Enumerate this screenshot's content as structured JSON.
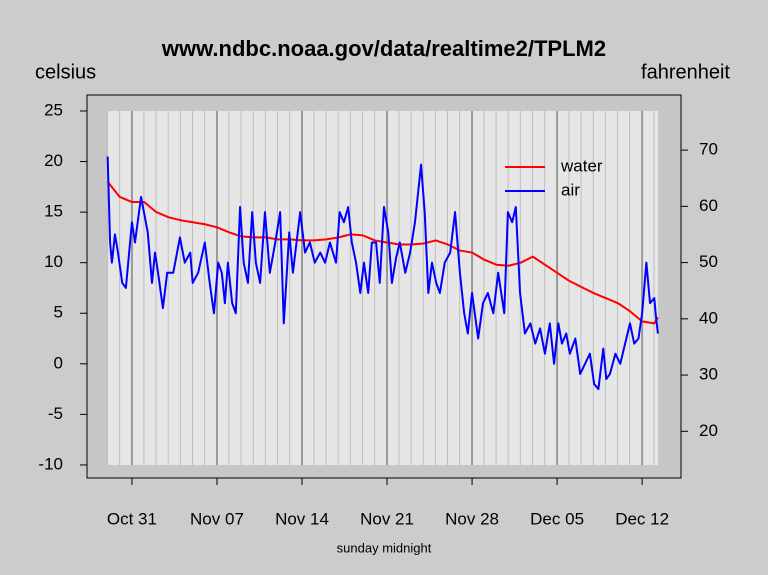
{
  "chart_data": {
    "type": "line",
    "title": "www.ndbc.noaa.gov/data/realtime2/TPLM2",
    "y_label": "celsius",
    "y2_label": "fahrenheit",
    "x_label": "sunday midnight",
    "xlim": [
      300.3,
      349.2
    ],
    "xticks": [
      {
        "value": 304,
        "label": "Oct 31"
      },
      {
        "value": 311,
        "label": "Nov 07"
      },
      {
        "value": 318,
        "label": "Nov 14"
      },
      {
        "value": 325,
        "label": "Nov 21"
      },
      {
        "value": 332,
        "label": "Nov 28"
      },
      {
        "value": 339,
        "label": "Dec 05"
      },
      {
        "value": 346,
        "label": "Dec 12"
      }
    ],
    "ylim": [
      -11.29,
      26.58
    ],
    "yticks": [
      25,
      20,
      15,
      10,
      5,
      0,
      -5,
      -10
    ],
    "y2lim": [
      11.7,
      79.8
    ],
    "y2ticks": [
      70,
      60,
      50,
      40,
      30,
      20
    ],
    "legend": "topright",
    "grid": true,
    "series": [
      {
        "name": "water",
        "color": "#ff0000",
        "x": [
          302,
          303,
          304,
          305,
          306,
          307,
          308,
          309,
          310,
          311,
          312,
          313,
          314,
          315,
          316,
          317,
          318,
          319,
          320,
          321,
          322,
          323,
          324,
          325,
          326,
          327,
          328,
          329,
          330,
          331,
          332,
          333,
          334,
          335,
          336,
          337,
          338,
          339,
          340,
          341,
          342,
          343,
          344,
          345,
          346,
          347,
          347.3
        ],
        "values": [
          18,
          16.5,
          16,
          16,
          15,
          14.5,
          14.2,
          14,
          13.8,
          13.5,
          13,
          12.6,
          12.5,
          12.5,
          12.3,
          12.3,
          12.2,
          12.2,
          12.3,
          12.5,
          12.8,
          12.7,
          12.2,
          12,
          11.8,
          11.8,
          11.9,
          12.2,
          11.8,
          11.2,
          11,
          10.3,
          9.8,
          9.7,
          10,
          10.6,
          9.8,
          9,
          8.2,
          7.6,
          7,
          6.5,
          6,
          5.2,
          4.2,
          4,
          4.6
        ]
      },
      {
        "name": "air",
        "color": "#0000ff",
        "x": [
          302.0,
          302.2,
          302.35,
          302.6,
          302.85,
          303.2,
          303.5,
          304.0,
          304.25,
          304.75,
          305.3,
          305.65,
          305.9,
          306.15,
          306.55,
          306.9,
          307.4,
          307.95,
          308.35,
          308.8,
          309.0,
          309.45,
          310.0,
          310.4,
          310.75,
          311.1,
          311.4,
          311.65,
          311.9,
          312.25,
          312.55,
          312.9,
          313.2,
          313.55,
          313.9,
          314.2,
          314.55,
          314.95,
          315.35,
          315.8,
          316.2,
          316.5,
          316.95,
          317.25,
          317.85,
          318.25,
          318.65,
          319.05,
          319.5,
          319.9,
          320.3,
          320.8,
          321.1,
          321.45,
          321.8,
          322.1,
          322.45,
          322.8,
          323.1,
          323.45,
          323.75,
          324.1,
          324.4,
          324.75,
          325.1,
          325.4,
          325.75,
          326.05,
          326.5,
          326.9,
          327.3,
          327.8,
          328.1,
          328.4,
          328.7,
          329.05,
          329.35,
          329.75,
          330.2,
          330.6,
          331.0,
          331.35,
          331.65,
          332.0,
          332.5,
          332.9,
          333.3,
          333.75,
          334.15,
          334.65,
          334.95,
          335.3,
          335.6,
          335.95,
          336.35,
          336.8,
          337.2,
          337.6,
          338.0,
          338.4,
          338.75,
          339.1,
          339.4,
          339.75,
          340.05,
          340.5,
          340.9,
          341.3,
          341.7,
          342.05,
          342.4,
          342.8,
          343.05,
          343.35,
          343.8,
          344.2,
          344.6,
          345.0,
          345.35,
          345.7,
          346.0,
          346.35,
          346.65,
          347.0,
          347.15,
          347.3
        ],
        "values": [
          20.5,
          12,
          10,
          12.8,
          11,
          8,
          7.5,
          14,
          12,
          16.5,
          13,
          8,
          11,
          9,
          5.5,
          9,
          9,
          12.5,
          10,
          11,
          8,
          9,
          12,
          8,
          5,
          10,
          9,
          6,
          10,
          6,
          5,
          15.5,
          10,
          8,
          15,
          10,
          8,
          15,
          9,
          12,
          15,
          4,
          13,
          9,
          15,
          11,
          12,
          10,
          11,
          10,
          12,
          10,
          15,
          14,
          15.5,
          12,
          10,
          7,
          10,
          7,
          12,
          12,
          8,
          15.5,
          13,
          8,
          10.5,
          12,
          9,
          11,
          14,
          19.7,
          15,
          7,
          10,
          8,
          7,
          10,
          11,
          15,
          9,
          5,
          3,
          7,
          2.5,
          6,
          7,
          5,
          9,
          5,
          15,
          14,
          15.5,
          7,
          3,
          4,
          2,
          3.5,
          1,
          4,
          0,
          4,
          2,
          3,
          1,
          2.5,
          -1,
          0,
          1,
          -2,
          -2.5,
          1.5,
          -1.5,
          -1,
          1,
          0,
          2,
          4,
          2,
          2.5,
          5,
          10,
          6,
          6.5,
          4.5,
          3
        ]
      }
    ]
  }
}
